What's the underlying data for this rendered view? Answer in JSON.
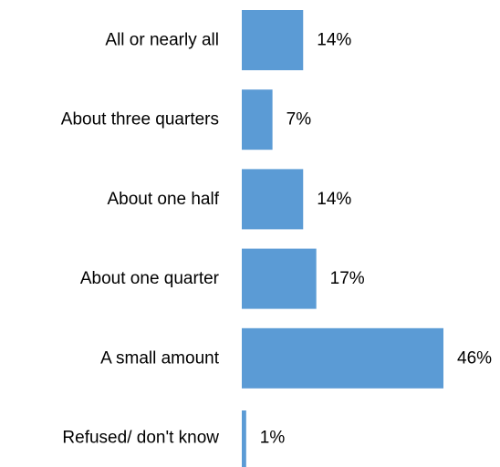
{
  "chart_data": {
    "type": "bar",
    "orientation": "horizontal",
    "title": "",
    "xlabel": "",
    "ylabel": "",
    "categories": [
      "All or nearly all",
      "About three quarters",
      "About one half",
      "About one quarter",
      "A small amount",
      "Refused/ don't know"
    ],
    "values": [
      14,
      7,
      14,
      17,
      46,
      1
    ],
    "value_labels": [
      "14%",
      "7%",
      "14%",
      "17%",
      "46%",
      "1%"
    ],
    "unit": "%",
    "xlim": [
      0,
      46
    ],
    "grid": false,
    "legend": "none",
    "bar_color": "#5b9bd5",
    "axis_line_color": "#d9d9d9"
  }
}
